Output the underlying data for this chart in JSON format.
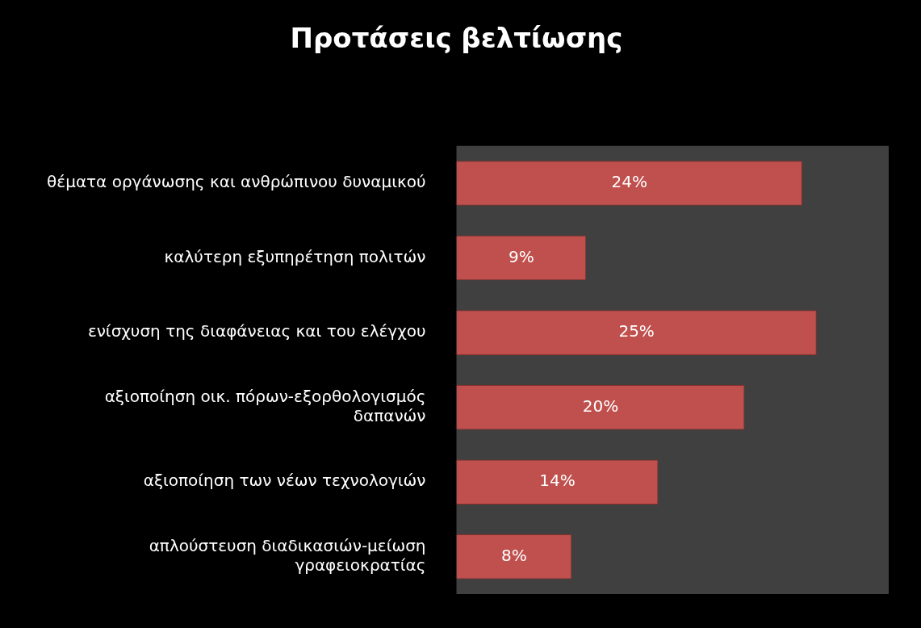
{
  "chart_data": {
    "type": "bar",
    "orientation": "horizontal",
    "title": "Προτάσεις βελτίωσης",
    "categories": [
      "θέματα οργάνωσης και ανθρώπινου δυναμικού",
      "καλύτερη εξυπηρέτηση πολιτών",
      "ενίσχυση της διαφάνειας και του ελέγχου",
      "αξιοποίηση οικ. πόρων-εξορθολογισμός δαπανών",
      "αξιοποίηση των νέων τεχνολογιών",
      "απλούστευση διαδικασιών-μείωση γραφειοκρατίας"
    ],
    "values": [
      24,
      9,
      25,
      20,
      14,
      8
    ],
    "value_labels": [
      "24%",
      "9%",
      "25%",
      "20%",
      "14%",
      "8%"
    ],
    "color": "#c0504d",
    "legend": false
  }
}
